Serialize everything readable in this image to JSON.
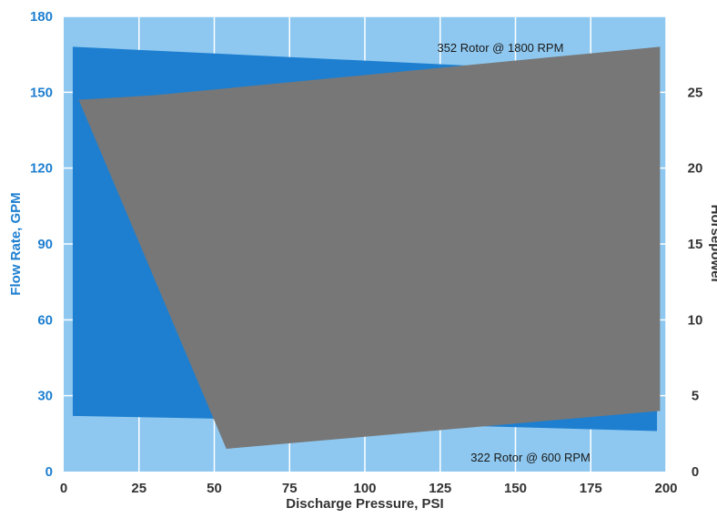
{
  "chart_data": {
    "type": "area",
    "title": "",
    "xlabel": "Discharge Pressure, PSI",
    "ylabel_left": "Flow Rate, GPM",
    "ylabel_right": "Horsepower",
    "xlim": [
      0,
      200
    ],
    "ylim_left": [
      0,
      180
    ],
    "ylim_right": [
      0,
      30
    ],
    "x_ticks": [
      0,
      25,
      50,
      75,
      100,
      125,
      150,
      175,
      200
    ],
    "y_left_ticks": [
      0,
      30,
      60,
      90,
      120,
      150,
      180
    ],
    "y_right_ticks": [
      0,
      5,
      10,
      15,
      20,
      25
    ],
    "grid": true,
    "colors": {
      "background": "#8ec8f0",
      "flow_area": "#1e7fd0",
      "horsepower_area": "#777777",
      "grid": "#ffffff",
      "left_axis_text": "#1e7fd0",
      "text": "#333333"
    },
    "series": [
      {
        "axis": "left",
        "points": [
          [
            3,
            168
          ],
          [
            3,
            22
          ],
          [
            47,
            21
          ],
          [
            197,
            16
          ],
          [
            197,
            157
          ]
        ]
      },
      {
        "axis": "right",
        "points": [
          [
            5,
            24.5
          ],
          [
            54,
            1.5
          ],
          [
            198,
            4
          ],
          [
            198,
            28
          ],
          [
            30,
            24.8
          ]
        ]
      }
    ],
    "annotations": [
      {
        "text": "352 Rotor @ 1800 RPM",
        "x": 145,
        "y_left": 166,
        "anchor": "middle"
      },
      {
        "text": "322 Rotor @ 600 RPM",
        "x": 155,
        "y_left": 4,
        "anchor": "middle"
      }
    ]
  }
}
